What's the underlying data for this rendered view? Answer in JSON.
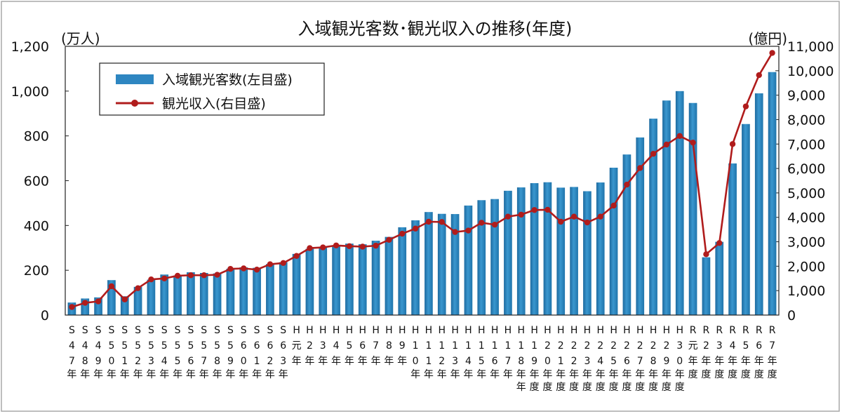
{
  "chart_data": {
    "type": "bar+line",
    "title": "入域観光客数･観光収入の推移(年度)",
    "left_unit": "(万人)",
    "right_unit": "(億円)",
    "left_ticks": [
      "0",
      "200",
      "400",
      "600",
      "800",
      "1,000",
      "1,200"
    ],
    "right_ticks": [
      "0",
      "1,000",
      "2,000",
      "3,000",
      "4,000",
      "5,000",
      "6,000",
      "7,000",
      "8,000",
      "9,000",
      "10,000",
      "11,000"
    ],
    "ylim_left": [
      0,
      1200
    ],
    "ylim_right": [
      0,
      11000
    ],
    "grid": false,
    "legend_position": "top-left",
    "categories": [
      [
        "S",
        "4",
        "7",
        "年"
      ],
      [
        "S",
        "4",
        "8",
        "年"
      ],
      [
        "S",
        "4",
        "9",
        "年"
      ],
      [
        "S",
        "5",
        "0",
        "年"
      ],
      [
        "S",
        "5",
        "1",
        "年"
      ],
      [
        "S",
        "5",
        "2",
        "年"
      ],
      [
        "S",
        "5",
        "3",
        "年"
      ],
      [
        "S",
        "5",
        "4",
        "年"
      ],
      [
        "S",
        "5",
        "5",
        "年"
      ],
      [
        "S",
        "5",
        "6",
        "年"
      ],
      [
        "S",
        "5",
        "7",
        "年"
      ],
      [
        "S",
        "5",
        "8",
        "年"
      ],
      [
        "S",
        "5",
        "9",
        "年"
      ],
      [
        "S",
        "6",
        "0",
        "年"
      ],
      [
        "S",
        "6",
        "1",
        "年"
      ],
      [
        "S",
        "6",
        "2",
        "年"
      ],
      [
        "S",
        "6",
        "3",
        "年"
      ],
      [
        "H",
        "元",
        "年"
      ],
      [
        "H",
        "2",
        "年"
      ],
      [
        "H",
        "3",
        "年"
      ],
      [
        "H",
        "4",
        "年"
      ],
      [
        "H",
        "5",
        "年"
      ],
      [
        "H",
        "6",
        "年"
      ],
      [
        "H",
        "7",
        "年"
      ],
      [
        "H",
        "8",
        "年"
      ],
      [
        "H",
        "9",
        "年"
      ],
      [
        "H",
        "1",
        "0",
        "年"
      ],
      [
        "H",
        "1",
        "1",
        "年"
      ],
      [
        "H",
        "1",
        "2",
        "年"
      ],
      [
        "H",
        "1",
        "3",
        "年"
      ],
      [
        "H",
        "1",
        "4",
        "年"
      ],
      [
        "H",
        "1",
        "5",
        "年"
      ],
      [
        "H",
        "1",
        "6",
        "年"
      ],
      [
        "H",
        "1",
        "7",
        "年"
      ],
      [
        "H",
        "1",
        "8",
        "年",
        "年"
      ],
      [
        "H",
        "1",
        "9",
        "年",
        "度"
      ],
      [
        "H",
        "2",
        "0",
        "年",
        "度"
      ],
      [
        "H",
        "2",
        "1",
        "年",
        "度"
      ],
      [
        "H",
        "2",
        "2",
        "年",
        "度"
      ],
      [
        "H",
        "2",
        "3",
        "年",
        "度"
      ],
      [
        "H",
        "2",
        "4",
        "年",
        "度"
      ],
      [
        "H",
        "2",
        "5",
        "年",
        "度"
      ],
      [
        "H",
        "2",
        "6",
        "年",
        "度"
      ],
      [
        "H",
        "2",
        "7",
        "年",
        "度"
      ],
      [
        "H",
        "2",
        "8",
        "年",
        "度"
      ],
      [
        "H",
        "2",
        "9",
        "年",
        "度"
      ],
      [
        "H",
        "3",
        "0",
        "年",
        "度"
      ],
      [
        "R",
        "元",
        "年",
        "度"
      ],
      [
        "R",
        "2",
        "年",
        "度"
      ],
      [
        "R",
        "3",
        "年",
        "度"
      ],
      [
        "R",
        "4",
        "年",
        "度"
      ],
      [
        "R",
        "5",
        "年",
        "度"
      ],
      [
        "R",
        "6",
        "年",
        "度"
      ],
      [
        "R",
        "7",
        "年",
        "度"
      ]
    ],
    "series": [
      {
        "name": "入域観光客数(左目盛)",
        "kind": "bar",
        "axis": "left",
        "color": "#2e86c1",
        "values": [
          56,
          74,
          79,
          156,
          84,
          126,
          158,
          181,
          177,
          191,
          188,
          186,
          207,
          213,
          211,
          228,
          236,
          273,
          296,
          304,
          311,
          319,
          316,
          332,
          349,
          392,
          423,
          460,
          452,
          451,
          489,
          513,
          518,
          555,
          570,
          589,
          593,
          569,
          572,
          553,
          592,
          658,
          717,
          793,
          877,
          958,
          1000,
          947,
          258,
          327,
          677,
          853,
          990,
          1085
        ]
      },
      {
        "name": "観光収入(右目盛)",
        "kind": "line",
        "axis": "right",
        "color": "#b01c1c",
        "values": [
          330,
          500,
          560,
          1180,
          640,
          1100,
          1460,
          1500,
          1610,
          1630,
          1630,
          1650,
          1890,
          1910,
          1860,
          2080,
          2130,
          2420,
          2740,
          2770,
          2850,
          2820,
          2800,
          2840,
          3080,
          3330,
          3540,
          3820,
          3810,
          3400,
          3460,
          3780,
          3700,
          4030,
          4110,
          4300,
          4310,
          3820,
          4030,
          3790,
          4030,
          4480,
          5340,
          6020,
          6600,
          6980,
          7330,
          7060,
          2490,
          2950,
          7000,
          8540,
          9820,
          10730
        ]
      }
    ]
  }
}
